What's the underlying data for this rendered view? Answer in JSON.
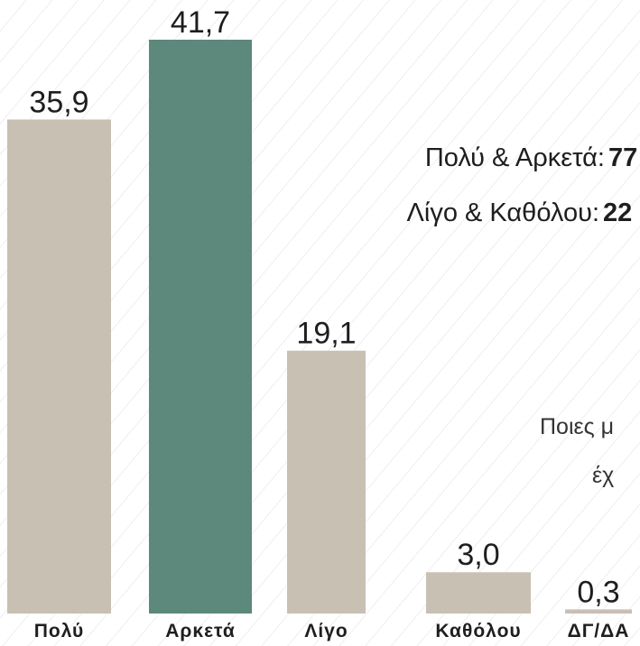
{
  "chart_data": {
    "type": "bar",
    "categories": [
      "Πολύ",
      "Αρκετά",
      "Λίγο",
      "Καθόλου",
      "ΔΓ/ΔΑ"
    ],
    "values": [
      35.9,
      41.7,
      19.1,
      3.0,
      0.3
    ],
    "value_labels": [
      "35,9",
      "41,7",
      "19,1",
      "3,0",
      "0,3"
    ],
    "colors": [
      "#c8c0b3",
      "#5d887c",
      "#c8c0b3",
      "#c8c0b3",
      "#c8c0b3"
    ],
    "annotations": [
      {
        "label": "Πολύ & Αρκετά:",
        "value": "77"
      },
      {
        "label": "Λίγο & Καθόλου:",
        "value": "22"
      }
    ],
    "question": [
      "Ποιες μ",
      "έχ"
    ]
  }
}
